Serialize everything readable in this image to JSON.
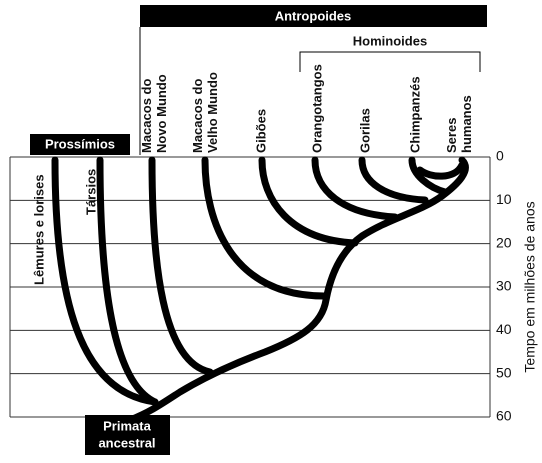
{
  "header": {
    "group": "Antropoides",
    "subgroup": "Hominoides",
    "prosimians": "Prossímios",
    "ancestor": [
      "Primata",
      "ancestral"
    ]
  },
  "taxa": [
    [
      "Lêmures e lorises"
    ],
    [
      "Társios"
    ],
    [
      "Macacos do",
      "Novo Mundo"
    ],
    [
      "Macacos do",
      "Velho Mundo"
    ],
    [
      "Gibões"
    ],
    [
      "Orangotangos"
    ],
    [
      "Gorilas"
    ],
    [
      "Chimpanzés"
    ],
    [
      "Seres",
      "humanos"
    ]
  ],
  "axis": {
    "title": "Tempo em milhões de anos",
    "ticks": [
      0,
      10,
      20,
      30,
      40,
      50,
      60
    ],
    "lim": [
      0,
      60
    ]
  }
}
